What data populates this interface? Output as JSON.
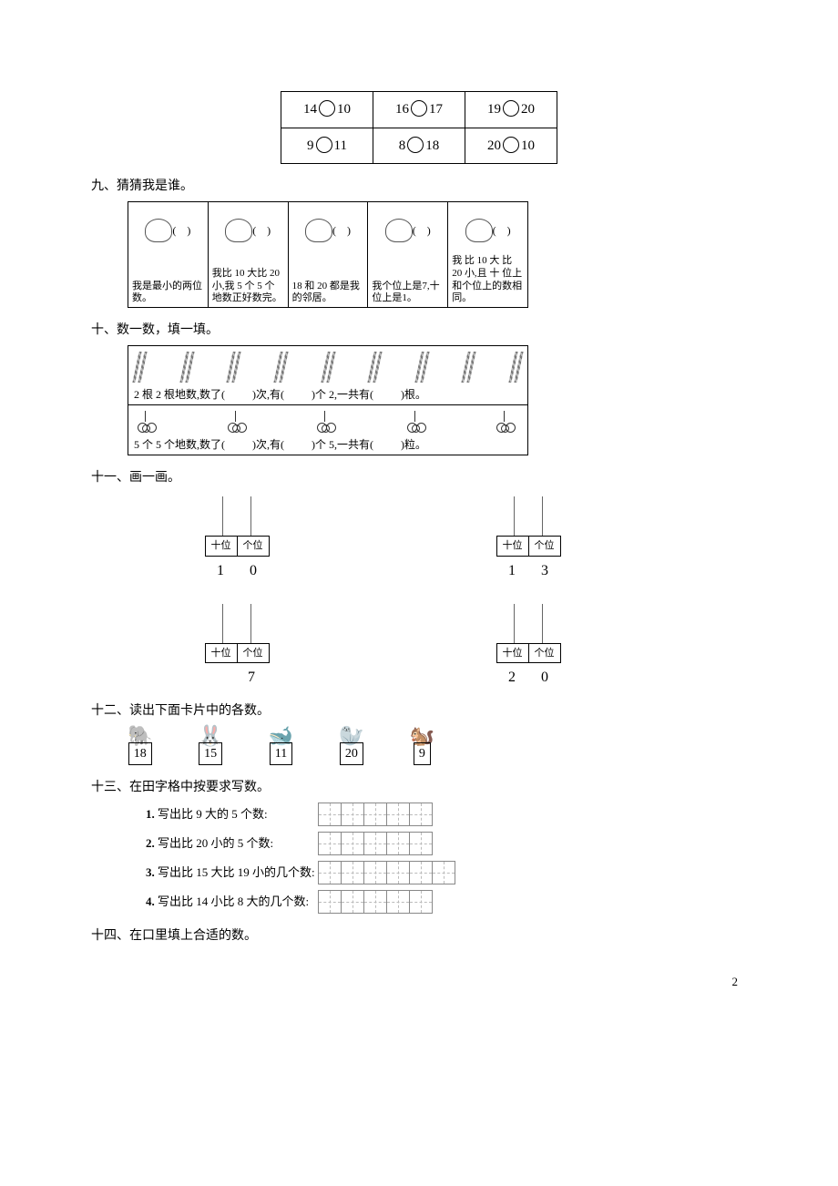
{
  "comparison_table": {
    "rows": [
      [
        {
          "l": "14",
          "r": "10"
        },
        {
          "l": "16",
          "r": "17"
        },
        {
          "l": "19",
          "r": "20"
        }
      ],
      [
        {
          "l": "9",
          "r": "11"
        },
        {
          "l": "8",
          "r": "18"
        },
        {
          "l": "20",
          "r": "10"
        }
      ]
    ]
  },
  "q9": {
    "title": "九、猜猜我是谁。",
    "riddles": [
      {
        "text": "我是最小的两位数。"
      },
      {
        "text": "我比 10 大比 20 小,我 5 个 5 个地数正好数完。"
      },
      {
        "text": "18 和 20 都是我的邻居。"
      },
      {
        "text": "我个位上是7,十位上是1。"
      },
      {
        "text": "我 比 10 大 比 20 小,且 十 位上和个位上的数相同。"
      }
    ]
  },
  "q10": {
    "title": "十、数一数，填一填。",
    "row1_text_a": "2 根 2 根地数,数了(",
    "row1_text_b": ")次,有(",
    "row1_text_c": ")个 2,一共有(",
    "row1_text_d": ")根。",
    "row2_text_a": "5 个 5 个地数,数了(",
    "row2_text_b": ")次,有(",
    "row2_text_c": ")个 5,一共有(",
    "row2_text_d": ")粒。",
    "stick_groups": 9,
    "cherry_groups": 5
  },
  "q11": {
    "title": "十一、画一画。",
    "label_tens": "十位",
    "label_ones": "个位",
    "items": [
      {
        "tens": "1",
        "ones": "0"
      },
      {
        "tens": "1",
        "ones": "3"
      },
      {
        "tens": "",
        "ones": "7"
      },
      {
        "tens": "2",
        "ones": "0"
      }
    ]
  },
  "q12": {
    "title": "十二、读出下面卡片中的各数。",
    "cards": [
      {
        "num": "18"
      },
      {
        "num": "15"
      },
      {
        "num": "11"
      },
      {
        "num": "20"
      },
      {
        "num": "9"
      }
    ]
  },
  "q13": {
    "title": "十三、在田字格中按要求写数。",
    "rows": [
      {
        "idx": "1.",
        "label": "写出比 9 大的 5 个数:",
        "cells": 5
      },
      {
        "idx": "2.",
        "label": "写出比 20 小的 5 个数:",
        "cells": 5
      },
      {
        "idx": "3.",
        "label": "写出比 15 大比 19 小的几个数:",
        "cells": 6
      },
      {
        "idx": "4.",
        "label": "写出比 14 小比 8 大的几个数:",
        "cells": 5
      }
    ]
  },
  "q14": {
    "title": "十四、在口里填上合适的数。"
  },
  "page_number": "2"
}
